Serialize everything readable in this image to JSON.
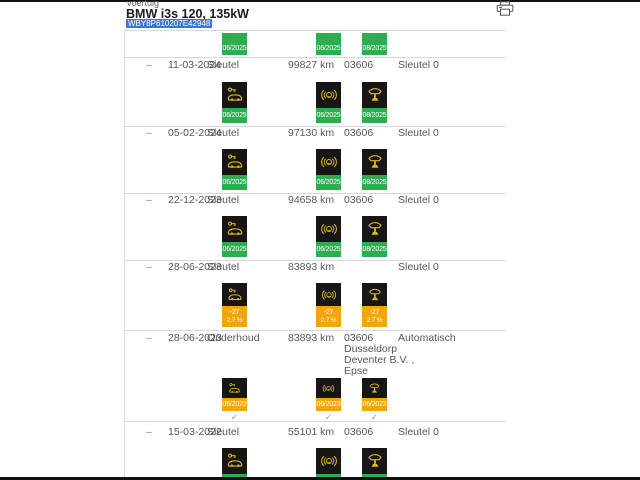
{
  "header": {
    "section_label": "voertuig",
    "vehicle_title": "BMW i3s 120, 135kW",
    "vin": "WBY8P610207E42948"
  },
  "colors": {
    "green": "#2EAC4F",
    "orange": "#F2A60D",
    "badge_black": "#171614",
    "icon_yellow": "#D8B81B",
    "vin_highlight": "#3B77D4",
    "check_green": "#8BAB8B",
    "text_gray": "#57575A"
  },
  "partial_top_badges": [
    {
      "icon": "key-car-icon",
      "label": "06/2025",
      "color": "green"
    },
    {
      "icon": "signal-car-icon",
      "label": "06/2025",
      "color": "green"
    },
    {
      "icon": "car-lift-icon",
      "label": "08/2025",
      "color": "green"
    }
  ],
  "rows": [
    {
      "collapse": "–",
      "date": "11-03-2024",
      "category": "Sleutel",
      "km": "99827 km",
      "code": "03606",
      "detail": "Sleutel 0",
      "badges": [
        {
          "icon": "key-car-icon",
          "label": "06/2025",
          "color": "green"
        },
        {
          "icon": "signal-car-icon",
          "label": "06/2025",
          "color": "green"
        },
        {
          "icon": "car-lift-icon",
          "label": "08/2025",
          "color": "green"
        }
      ]
    },
    {
      "collapse": "–",
      "date": "05-02-2024",
      "category": "Sleutel",
      "km": "97130 km",
      "code": "03606",
      "detail": "Sleutel 0",
      "badges": [
        {
          "icon": "key-car-icon",
          "label": "06/2025",
          "color": "green"
        },
        {
          "icon": "signal-car-icon",
          "label": "06/2025",
          "color": "green"
        },
        {
          "icon": "car-lift-icon",
          "label": "08/2025",
          "color": "green"
        }
      ]
    },
    {
      "collapse": "–",
      "date": "22-12-2023",
      "category": "Sleutel",
      "km": "94658 km",
      "code": "03606",
      "detail": "Sleutel 0",
      "badges": [
        {
          "icon": "key-car-icon",
          "label": "06/2025",
          "color": "green"
        },
        {
          "icon": "signal-car-icon",
          "label": "06/2025",
          "color": "green"
        },
        {
          "icon": "car-lift-icon",
          "label": "08/2025",
          "color": "green"
        }
      ]
    },
    {
      "collapse": "–",
      "date": "28-06-2023",
      "category": "Sleutel",
      "km": "83893 km",
      "code": "",
      "detail": "Sleutel 0",
      "badges": [
        {
          "icon": "key-car-icon",
          "label": "-27",
          "sub": "2.7 %",
          "color": "orange"
        },
        {
          "icon": "signal-car-icon",
          "label": "-27",
          "sub": "2.7 %",
          "color": "orange"
        },
        {
          "icon": "car-lift-icon",
          "label": "-27",
          "sub": "2.7 %",
          "color": "orange"
        }
      ]
    },
    {
      "collapse": "–",
      "date": "28-06-2023",
      "category": "Onderhoud",
      "km": "83893 km",
      "code_lines": [
        "03606",
        "Dusseldorp",
        "Deventer B.V. ,",
        "Epse"
      ],
      "detail": "Automatisch",
      "badges": [
        {
          "icon": "key-car-icon",
          "label": "06/2023",
          "color": "orange",
          "check": "✓"
        },
        {
          "icon": "signal-car-icon",
          "label": "06/2023",
          "color": "orange",
          "check": "✓"
        },
        {
          "icon": "car-lift-icon",
          "label": "06/2023",
          "color": "orange",
          "check": "✓"
        }
      ]
    },
    {
      "collapse": "–",
      "date": "15-03-2022",
      "category": "Sleutel",
      "km": "55101 km",
      "code": "03606",
      "detail": "Sleutel 0",
      "badges": [
        {
          "icon": "key-car-icon",
          "label": "",
          "color": "green",
          "cut": true
        },
        {
          "icon": "signal-car-icon",
          "label": "",
          "color": "green",
          "cut": true
        },
        {
          "icon": "car-lift-icon",
          "label": "",
          "color": "green",
          "cut": true
        }
      ]
    }
  ]
}
